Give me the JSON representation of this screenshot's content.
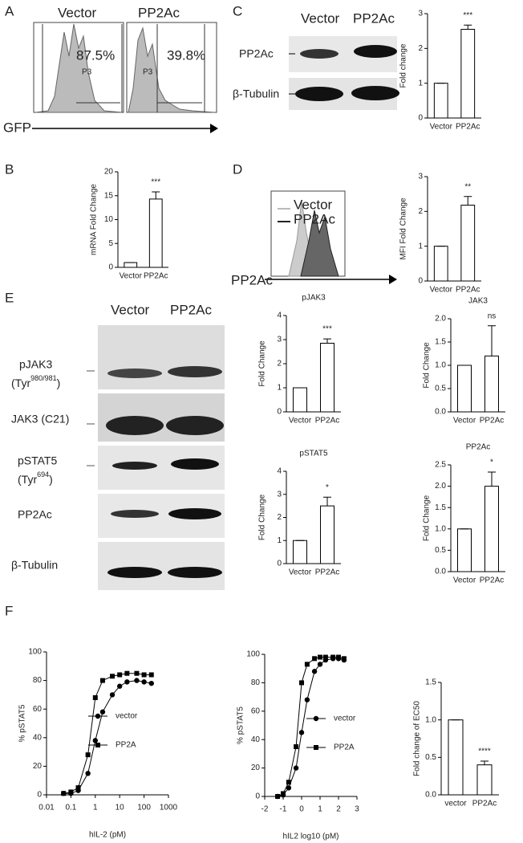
{
  "panels": [
    "A",
    "B",
    "C",
    "D",
    "E",
    "F"
  ],
  "panel_a": {
    "samples": [
      "Vector",
      "PP2Ac"
    ],
    "percents": [
      "87.5%",
      "39.8%"
    ],
    "gate": "P3",
    "axis": "GFP"
  },
  "panel_c_blot": {
    "lanes": [
      "Vector",
      "PP2Ac"
    ],
    "rows": [
      "PP2Ac",
      "β-Tubulin"
    ]
  },
  "panel_d_hist": {
    "legend": [
      "Vector",
      "PP2Ac"
    ],
    "axis": "PP2Ac"
  },
  "panel_e_blot": {
    "lanes": [
      "Vector",
      "PP2Ac"
    ],
    "rows": [
      {
        "name": "pJAK3",
        "site": [
          "(Tyr",
          "980/981",
          ")"
        ]
      },
      {
        "name": "JAK3 (C21)"
      },
      {
        "name": "pSTAT5",
        "site": [
          "(Tyr",
          "694",
          ")"
        ]
      },
      {
        "name": "PP2Ac"
      },
      {
        "name": "β-Tubulin"
      }
    ]
  },
  "chart_data": [
    {
      "type": "bar",
      "ylabel": "mRNA Fold Change",
      "categories": [
        "Vector",
        "PP2Ac"
      ],
      "values": [
        1,
        14.3
      ],
      "errors": [
        0,
        1.5
      ],
      "ylim": [
        0,
        20
      ],
      "yticks": [
        0,
        5,
        10,
        15,
        20
      ],
      "annotation": "***",
      "color": "#ffffff"
    },
    {
      "type": "bar",
      "ylabel": "Fold change",
      "categories": [
        "Vector",
        "PP2Ac"
      ],
      "values": [
        1,
        2.55
      ],
      "errors": [
        0,
        0.12
      ],
      "ylim": [
        0,
        3
      ],
      "yticks": [
        0,
        1,
        2,
        3
      ],
      "annotation": "***",
      "color": "#ffffff"
    },
    {
      "type": "bar",
      "ylabel": "MFI Fold Change",
      "categories": [
        "Vector",
        "PP2Ac"
      ],
      "values": [
        1,
        2.18
      ],
      "errors": [
        0,
        0.25
      ],
      "ylim": [
        0,
        3
      ],
      "yticks": [
        0,
        1,
        2,
        3
      ],
      "annotation": "**",
      "color": "#ffffff"
    },
    {
      "type": "bar",
      "title": "pJAK3",
      "ylabel": "Fold Change",
      "categories": [
        "Vector",
        "PP2Ac"
      ],
      "values": [
        1,
        2.85
      ],
      "errors": [
        0,
        0.18
      ],
      "ylim": [
        0,
        4
      ],
      "yticks": [
        0,
        1,
        2,
        3,
        4
      ],
      "annotation": "***",
      "color": "#ffffff"
    },
    {
      "type": "bar",
      "title": "JAK3",
      "ylabel": "Fold Change",
      "categories": [
        "Vector",
        "PP2Ac"
      ],
      "values": [
        1,
        1.2
      ],
      "errors": [
        0,
        0.65
      ],
      "ylim": [
        0,
        2
      ],
      "yticks": [
        {
          "value": 0,
          "label": "0.0"
        },
        {
          "value": 0.5,
          "label": "0.5"
        },
        {
          "value": 1,
          "label": "1.0"
        },
        {
          "value": 1.5,
          "label": "1.5"
        },
        {
          "value": 2,
          "label": "2.0"
        }
      ],
      "annotation": "ns",
      "color": "#ffffff"
    },
    {
      "type": "bar",
      "title": "pSTAT5",
      "ylabel": "Fold Change",
      "categories": [
        "Vector",
        "PP2Ac"
      ],
      "values": [
        1,
        2.5
      ],
      "errors": [
        0,
        0.38
      ],
      "ylim": [
        0,
        4
      ],
      "yticks": [
        0,
        1,
        2,
        3,
        4
      ],
      "annotation": "*",
      "color": "#ffffff"
    },
    {
      "type": "bar",
      "title": "PP2Ac",
      "ylabel": "Fold Change",
      "categories": [
        "Vector",
        "PP2Ac"
      ],
      "values": [
        1,
        2.0
      ],
      "errors": [
        0,
        0.33
      ],
      "ylim": [
        0,
        2.5
      ],
      "yticks": [
        {
          "value": 0,
          "label": "0.0"
        },
        {
          "value": 0.5,
          "label": "0.5"
        },
        {
          "value": 1,
          "label": "1.0"
        },
        {
          "value": 1.5,
          "label": "1.5"
        },
        {
          "value": 2,
          "label": "2.0"
        },
        {
          "value": 2.5,
          "label": "2.5"
        }
      ],
      "annotation": "*",
      "color": "#ffffff"
    },
    {
      "type": "line",
      "xlabel": "hIL-2 (pM)",
      "ylabel": "% pSTAT5",
      "log_x": true,
      "xlim": [
        0.01,
        1000
      ],
      "xticks": [
        0.01,
        0.1,
        1,
        10,
        100,
        1000
      ],
      "ylim": [
        0,
        100
      ],
      "yticks": [
        0,
        20,
        40,
        60,
        80,
        100
      ],
      "x": [
        0.05,
        0.1,
        0.2,
        0.5,
        1,
        2,
        5,
        10,
        20,
        50,
        100,
        200
      ],
      "series": [
        {
          "name": "vector",
          "marker": "circle",
          "color": "#000000",
          "values": [
            1,
            1,
            3,
            15,
            38,
            58,
            70,
            76,
            79,
            80,
            79,
            78
          ]
        },
        {
          "name": "PP2A",
          "marker": "square",
          "color": "#000000",
          "values": [
            1,
            2,
            5,
            28,
            68,
            80,
            83,
            84,
            85,
            85,
            84,
            84
          ]
        }
      ]
    },
    {
      "type": "line",
      "xlabel": "hIL2 log10 (pM)",
      "ylabel": "% pSTAT5",
      "log_x": false,
      "xlim": [
        -2,
        3
      ],
      "xticks": [
        -2,
        -1,
        0,
        1,
        2,
        3
      ],
      "ylim": [
        0,
        100
      ],
      "yticks": [
        0,
        20,
        40,
        60,
        80,
        100
      ],
      "x": [
        -1.3,
        -1,
        -0.7,
        -0.3,
        0,
        0.3,
        0.7,
        1,
        1.3,
        1.7,
        2,
        2.3
      ],
      "series": [
        {
          "name": "vector",
          "marker": "circle",
          "color": "#000000",
          "values": [
            0,
            1,
            6,
            20,
            45,
            68,
            88,
            93,
            96,
            97,
            97,
            96
          ]
        },
        {
          "name": "PP2A",
          "marker": "square",
          "color": "#000000",
          "values": [
            0,
            2,
            10,
            35,
            80,
            93,
            97,
            98,
            98,
            98,
            98,
            97
          ]
        }
      ]
    },
    {
      "type": "bar",
      "ylabel": "Fold change of EC50",
      "categories": [
        "vector",
        "PP2Ac"
      ],
      "values": [
        1,
        0.4
      ],
      "errors": [
        0,
        0.05
      ],
      "ylim": [
        0,
        1.5
      ],
      "yticks": [
        {
          "value": 0,
          "label": "0.0"
        },
        {
          "value": 0.5,
          "label": "0.5"
        },
        {
          "value": 1,
          "label": "1.0"
        },
        {
          "value": 1.5,
          "label": "1.5"
        }
      ],
      "annotation": "****",
      "color": "#ffffff"
    }
  ]
}
